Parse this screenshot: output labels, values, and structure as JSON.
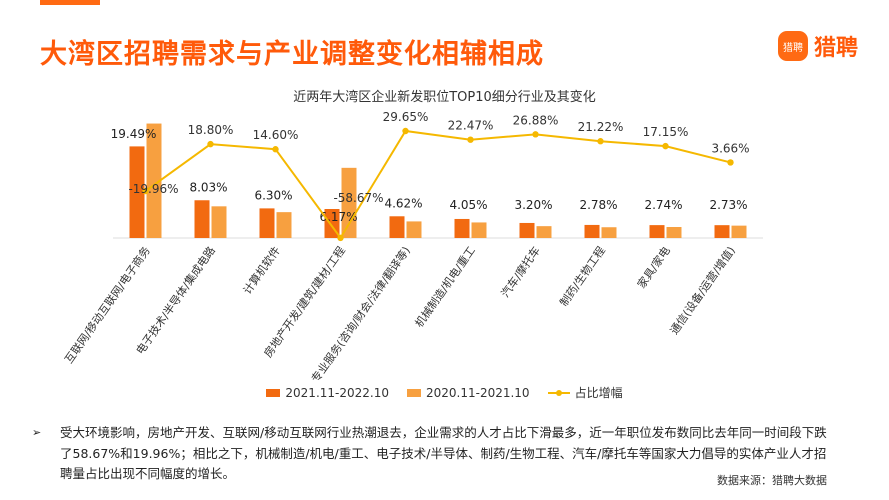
{
  "page": {
    "title": "大湾区招聘需求与产业调整变化相辅相成",
    "logo_text": "猎聘",
    "logo_mark": "猎聘",
    "bullet": "➢",
    "summary": "受大环境影响，房地产开发、互联网/移动互联网行业热潮退去，企业需求的人才占比下滑最多，近一年职位发布数同比去年同一时间段下跌了58.67%和19.96%；相比之下，机械制造/机电/重工、电子技术/半导体、制药/生物工程、汽车/摩托车等国家大力倡导的实体产业人才招聘量占比出现不同幅度的增长。",
    "source": "数据来源：猎聘大数据"
  },
  "colors": {
    "accent": "#ff5a0a",
    "series_2021": "#f26a10",
    "series_2020": "#f7a040",
    "line": "#f5b800"
  },
  "chart_data": {
    "type": "bar",
    "title": "近两年大湾区企业新发职位TOP10细分行业及其变化",
    "categories": [
      "互联网/移动互联网/电子商务",
      "电子技术/半导体/集成电路",
      "计算机软件",
      "房地产开发/建筑/建材/工程",
      "专业服务(咨询/财会/法律/翻译等)",
      "机械制造/机电/重工",
      "汽车/摩托车",
      "制药/生物工程",
      "家具/家电",
      "通信(设备/运营/增值)"
    ],
    "series": [
      {
        "name": "2021.11-2022.10",
        "values": [
          19.49,
          8.03,
          6.3,
          6.17,
          4.62,
          4.05,
          3.2,
          2.78,
          2.74,
          2.73
        ]
      },
      {
        "name": "2020.11-2021.10",
        "values": [
          24.35,
          6.74,
          5.5,
          14.93,
          3.53,
          3.31,
          2.52,
          2.29,
          2.34,
          2.63
        ]
      }
    ],
    "line": {
      "name": "占比增幅",
      "values": [
        -19.96,
        18.8,
        14.6,
        -58.67,
        29.65,
        22.47,
        26.88,
        21.22,
        17.15,
        3.66
      ]
    },
    "bar_labels": [
      "19.49%",
      "8.03%",
      "6.30%",
      "6.17%",
      "4.62%",
      "4.05%",
      "3.20%",
      "2.78%",
      "2.74%",
      "2.73%"
    ],
    "line_labels": [
      "-19.96%",
      "18.80%",
      "14.60%",
      "-58.67%",
      "29.65%",
      "22.47%",
      "26.88%",
      "21.22%",
      "17.15%",
      "3.66%"
    ],
    "legend_position": "bottom",
    "grid": false
  }
}
